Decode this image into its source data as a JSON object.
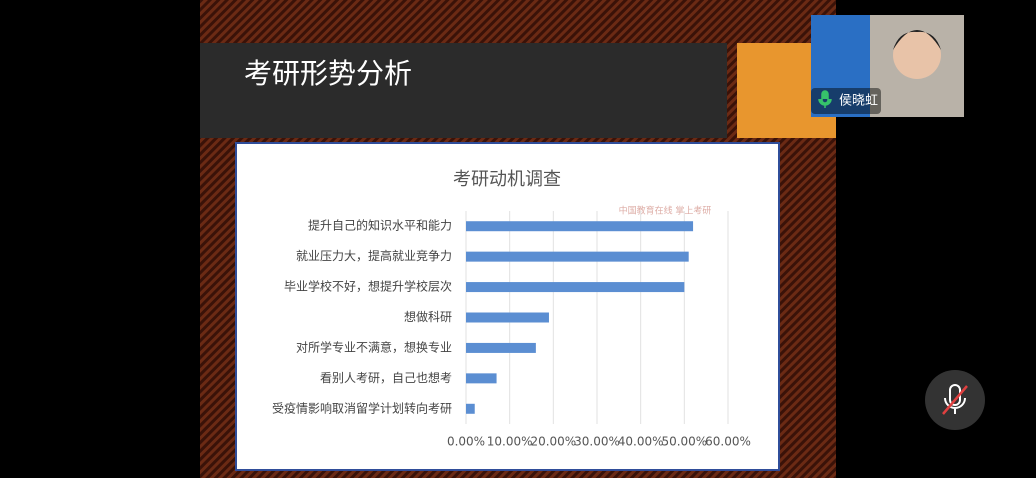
{
  "slide": {
    "title": "考研形势分析"
  },
  "chart_data": {
    "type": "bar",
    "orientation": "horizontal",
    "title": "考研动机调查",
    "watermark": "中国教育在线 掌上考研",
    "categories": [
      "提升自己的知识水平和能力",
      "就业压力大，提高就业竞争力",
      "毕业学校不好，想提升学校层次",
      "想做科研",
      "对所学专业不满意，想换专业",
      "看别人考研，自己也想考",
      "受疫情影响取消留学计划转向考研"
    ],
    "values": [
      52,
      51,
      50,
      19,
      16,
      7,
      2
    ],
    "color": "#5b8ed2",
    "xlim": [
      0,
      60
    ],
    "xticks": [
      {
        "value": 0,
        "label": "0.00%"
      },
      {
        "value": 10,
        "label": "10.00%"
      },
      {
        "value": 20,
        "label": "20.00%"
      },
      {
        "value": 30,
        "label": "30.00%"
      },
      {
        "value": 40,
        "label": "40.00%"
      },
      {
        "value": 50,
        "label": "50.00%"
      },
      {
        "value": 60,
        "label": "60.00%"
      }
    ],
    "grid": true
  },
  "participant": {
    "name": "侯晓虹"
  }
}
